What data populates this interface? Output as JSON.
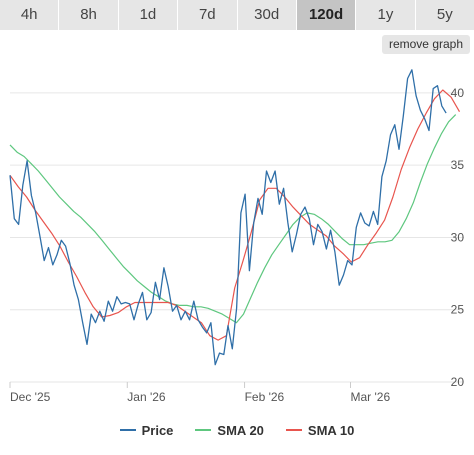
{
  "tabs": [
    {
      "label": "4h",
      "active": false
    },
    {
      "label": "8h",
      "active": false
    },
    {
      "label": "1d",
      "active": false
    },
    {
      "label": "7d",
      "active": false
    },
    {
      "label": "30d",
      "active": false
    },
    {
      "label": "120d",
      "active": true
    },
    {
      "label": "1y",
      "active": false
    },
    {
      "label": "5y",
      "active": false
    }
  ],
  "remove_graph_label": "remove graph",
  "chart_data": {
    "type": "line",
    "x_ticks": [
      {
        "label": "Dec '25",
        "x": 0
      },
      {
        "label": "Jan '26",
        "x": 31
      },
      {
        "label": "Feb '26",
        "x": 62
      },
      {
        "label": "Mar '26",
        "x": 90
      }
    ],
    "x_range": [
      0,
      120
    ],
    "ylim": [
      20,
      42
    ],
    "y_ticks": [
      20,
      25,
      30,
      35,
      40
    ],
    "grid": true,
    "legend_position": "bottom",
    "colors": {
      "Price": "#2f6fa8",
      "SMA 20": "#5ec77f",
      "SMA 10": "#e8554e"
    },
    "series": [
      {
        "name": "Price",
        "values": [
          34.3,
          31.3,
          30.9,
          33.6,
          35.3,
          32.9,
          31.7,
          30.1,
          28.4,
          29.3,
          28.1,
          28.8,
          29.8,
          29.4,
          28.2,
          26.7,
          25.7,
          24.1,
          22.6,
          24.7,
          24.1,
          24.9,
          24.2,
          25.6,
          24.9,
          25.9,
          25.4,
          25.5,
          25.4,
          24.3,
          25.4,
          26.2,
          24.3,
          24.8,
          26.9,
          25.7,
          27.9,
          26.6,
          24.9,
          25.3,
          24.3,
          24.9,
          24.3,
          25.6,
          24.3,
          23.8,
          23.4,
          24.1,
          21.2,
          22.0,
          21.9,
          23.9,
          22.3,
          25.1,
          31.7,
          33.0,
          27.7,
          31.0,
          32.7,
          31.6,
          34.6,
          33.8,
          34.6,
          32.3,
          33.4,
          31.0,
          29.0,
          30.2,
          31.6,
          32.1,
          31.3,
          29.5,
          30.9,
          30.4,
          29.2,
          30.5,
          29.0,
          26.7,
          27.4,
          28.4,
          28.1,
          30.7,
          31.7,
          31.0,
          30.8,
          31.8,
          30.9,
          34.2,
          35.3,
          37.1,
          37.8,
          36.1,
          38.4,
          41.0,
          41.6,
          39.8,
          38.8,
          38.2,
          37.4,
          40.3,
          40.5,
          39.1,
          38.6
        ],
        "x_start": 0,
        "x_step": 1.13
      },
      {
        "name": "SMA 20",
        "values": [
          36.4,
          35.9,
          35.6,
          35.1,
          34.6,
          34.0,
          33.4,
          32.8,
          32.3,
          31.8,
          31.4,
          30.9,
          30.4,
          29.8,
          29.2,
          28.6,
          28.0,
          27.5,
          27.0,
          26.6,
          26.2,
          25.9,
          25.6,
          25.4,
          25.3,
          25.3,
          25.2,
          25.2,
          25.1,
          24.9,
          24.7,
          24.4,
          24.1,
          24.7,
          25.8,
          26.9,
          27.9,
          28.8,
          29.5,
          30.2,
          30.9,
          31.4,
          31.7,
          31.6,
          31.3,
          30.9,
          30.4,
          29.9,
          29.5,
          29.5,
          29.5,
          29.6,
          29.7,
          29.7,
          29.8,
          30.4,
          31.3,
          32.4,
          33.8,
          35.1,
          36.2,
          37.2,
          38.0,
          38.5
        ],
        "x_start": 0,
        "x_step": 1.87
      },
      {
        "name": "SMA 10",
        "values": [
          34.3,
          33.5,
          32.8,
          31.9,
          31.1,
          30.3,
          29.4,
          28.3,
          27.3,
          26.2,
          25.2,
          24.5,
          24.6,
          24.8,
          25.2,
          25.5,
          25.5,
          25.5,
          25.5,
          25.5,
          25.3,
          24.9,
          24.5,
          24.1,
          23.2,
          22.9,
          23.2,
          26.5,
          28.4,
          30.4,
          32.6,
          33.4,
          33.4,
          32.8,
          32.1,
          31.5,
          30.9,
          30.5,
          30.1,
          29.4,
          28.9,
          28.3,
          28.6,
          29.5,
          30.3,
          31.2,
          32.8,
          34.7,
          36.2,
          37.5,
          38.6,
          39.6,
          40.2,
          39.7,
          38.7
        ],
        "x_start": 0,
        "x_step": 2.2
      }
    ]
  }
}
